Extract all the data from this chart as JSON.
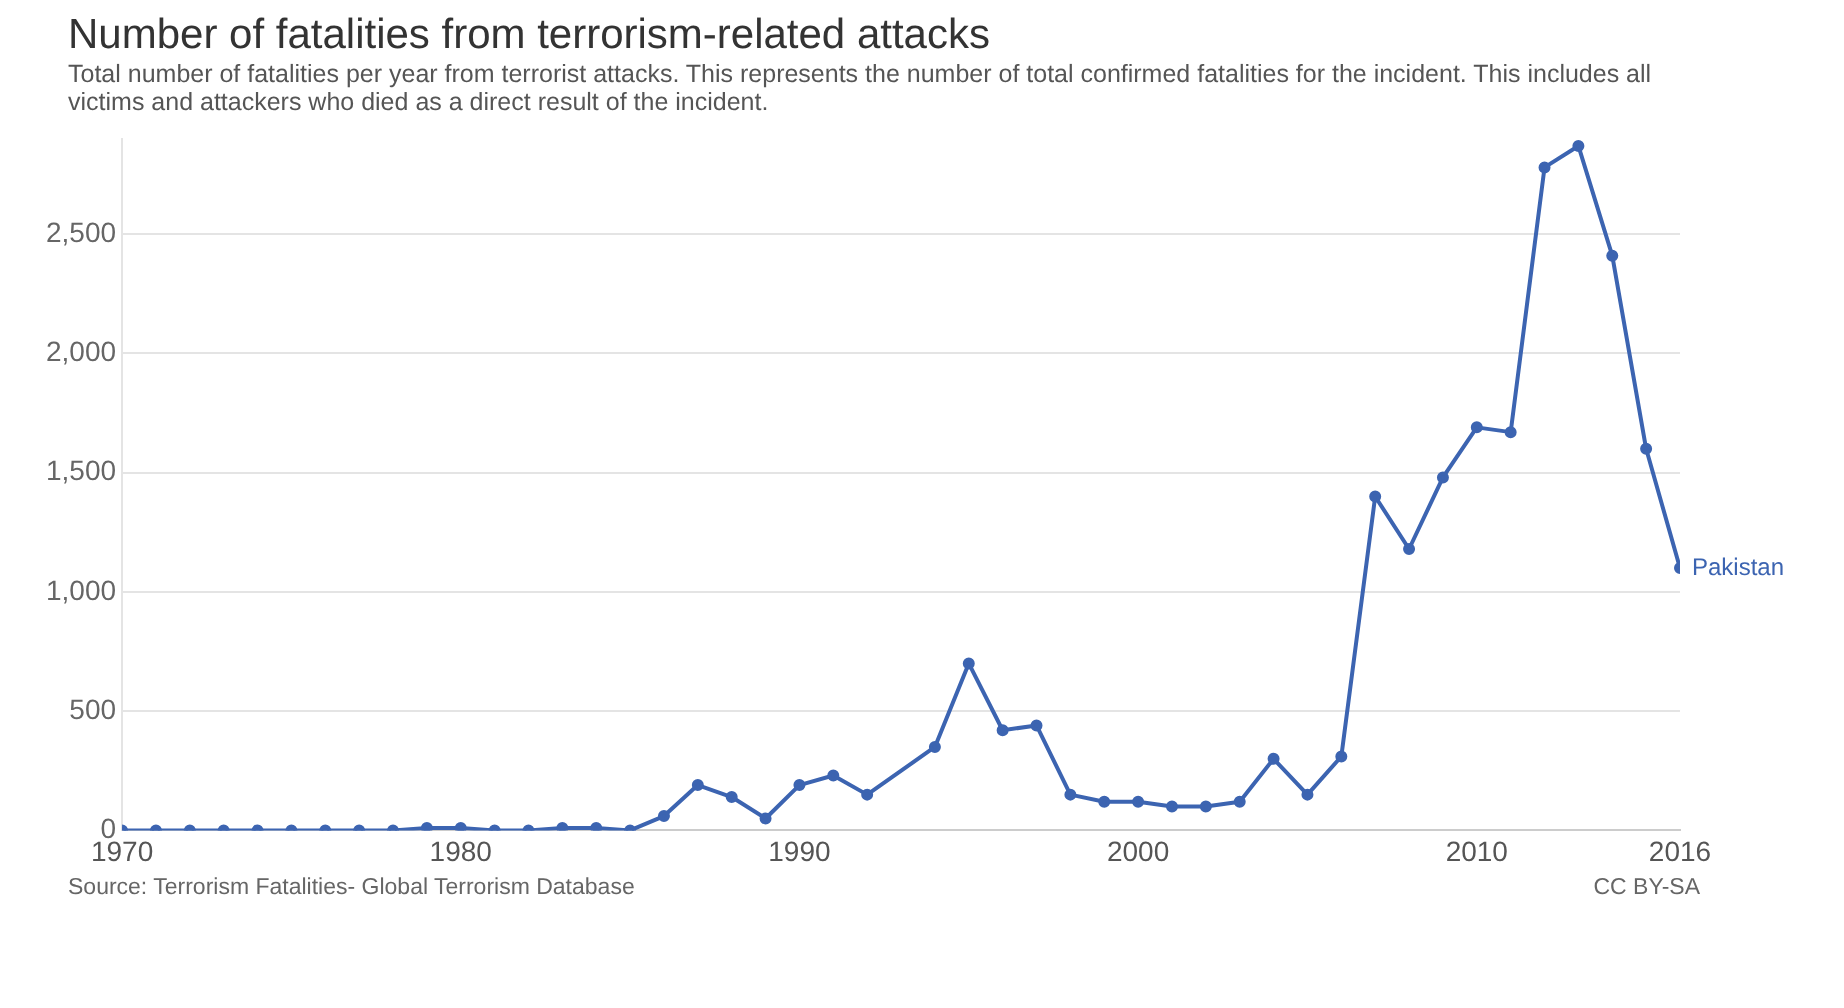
{
  "chart_data": {
    "type": "line",
    "title": "Number of fatalities from terrorism-related attacks",
    "subtitle": "Total number of fatalities per year from terrorist attacks. This represents the number of total confirmed fatalities for the incident. This includes all victims and attackers who died as a direct result of the incident.",
    "annotations": [
      "Source: Terrorism Fatalities- Global Terrorism Database",
      "CC BY-SA"
    ],
    "series": [
      {
        "name": "Pakistan",
        "color": "#3c64b1",
        "x": [
          1970,
          1971,
          1972,
          1973,
          1974,
          1975,
          1976,
          1977,
          1978,
          1979,
          1980,
          1981,
          1982,
          1983,
          1984,
          1985,
          1986,
          1987,
          1988,
          1989,
          1990,
          1991,
          1992,
          1994,
          1995,
          1996,
          1997,
          1998,
          1999,
          2000,
          2001,
          2002,
          2003,
          2004,
          2005,
          2006,
          2007,
          2008,
          2009,
          2010,
          2011,
          2012,
          2013,
          2014,
          2015,
          2016
        ],
        "values": [
          0,
          0,
          0,
          0,
          0,
          0,
          0,
          0,
          0,
          10,
          10,
          0,
          0,
          10,
          10,
          0,
          60,
          190,
          140,
          50,
          190,
          230,
          150,
          350,
          700,
          420,
          440,
          150,
          120,
          120,
          100,
          100,
          120,
          300,
          150,
          310,
          1400,
          1180,
          1480,
          1690,
          1670,
          2780,
          2870,
          2410,
          1600,
          1100
        ]
      }
    ],
    "xlim": [
      1970,
      2016
    ],
    "xticks": [
      1970,
      1980,
      1990,
      2000,
      2010,
      2016
    ],
    "ylim": [
      0,
      2900
    ],
    "yticks": [
      0,
      {
        "value": 500,
        "label": "500"
      },
      {
        "value": 1000,
        "label": "1,000"
      },
      {
        "value": 1500,
        "label": "1,500"
      },
      {
        "value": 2000,
        "label": "2,000"
      },
      {
        "value": 2500,
        "label": "2,500"
      }
    ],
    "grid": "y",
    "marker": "circle",
    "line_style": "solid",
    "legend": false
  }
}
